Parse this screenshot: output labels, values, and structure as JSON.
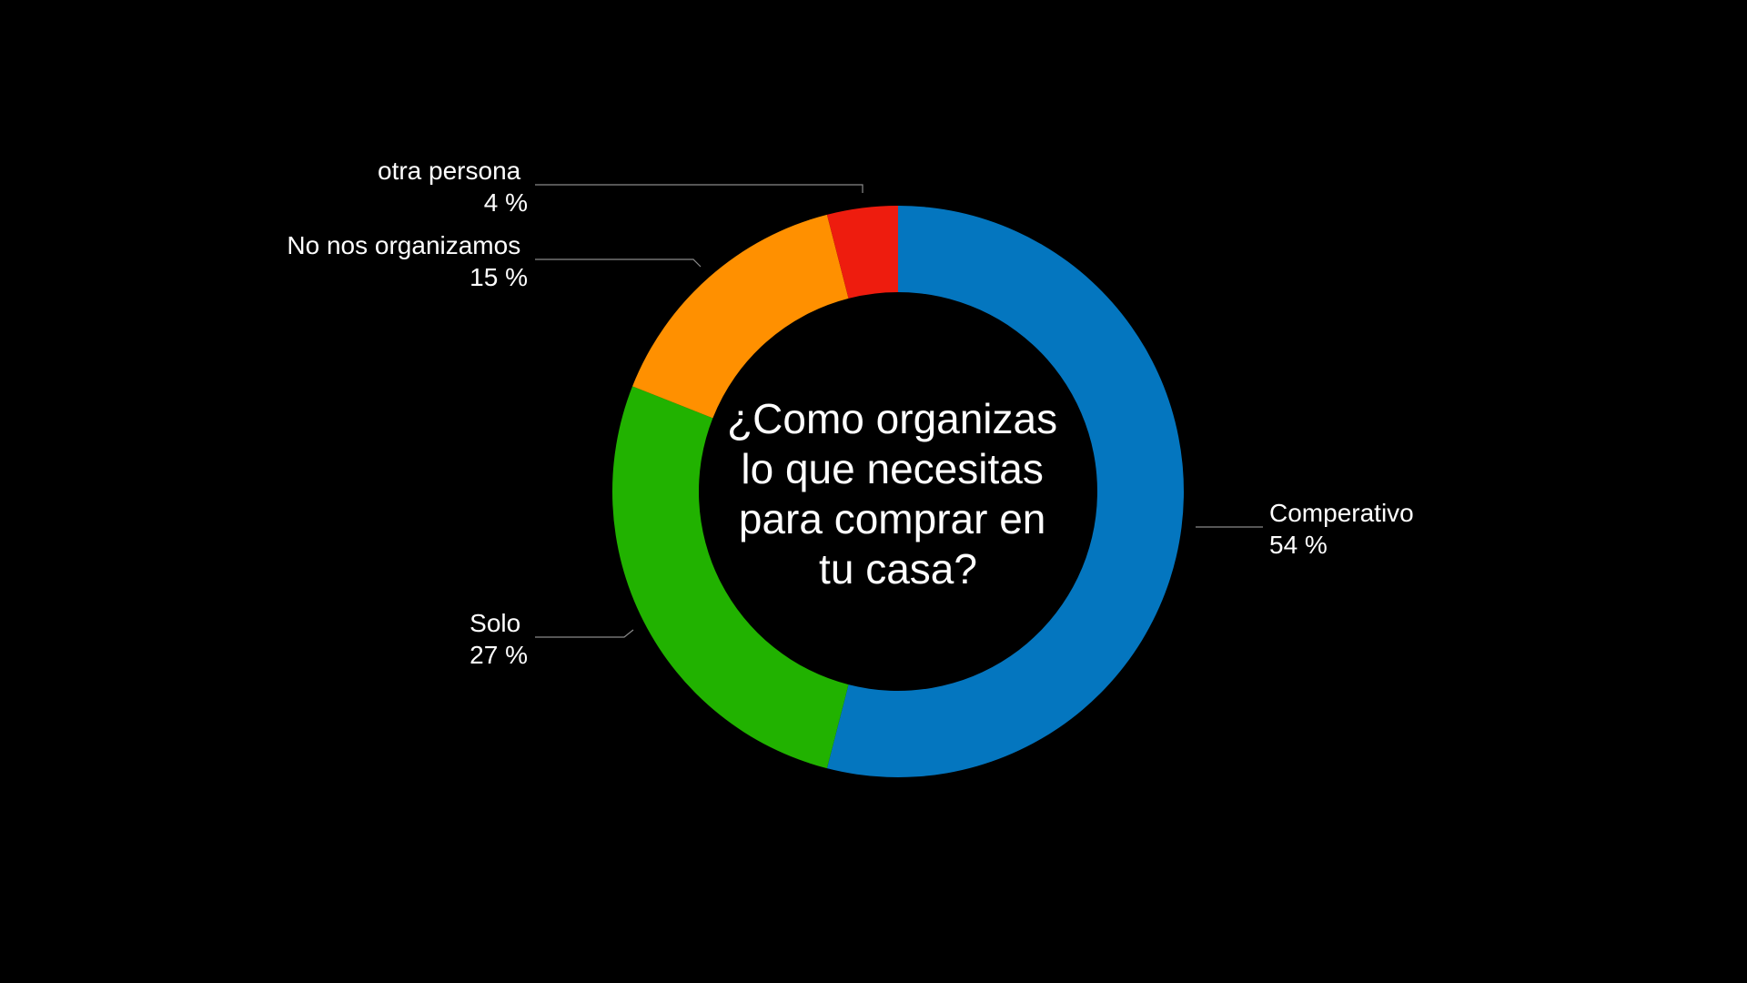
{
  "chart_data": {
    "type": "pie",
    "style": "donut",
    "title": "¿Como organizas lo que necesitas para comprar en tu casa?",
    "title_lines": [
      "¿Como organizas",
      "lo que necesitas",
      "para comprar en",
      "tu casa?"
    ],
    "slices": [
      {
        "label": "Comperativo",
        "value": 54,
        "value_text": "54 %",
        "color": "#0476bf"
      },
      {
        "label": "Solo",
        "value": 27,
        "value_text": "27 %",
        "color": "#21b200"
      },
      {
        "label": "No nos organizamos",
        "value": 15,
        "value_text": "15 %",
        "color": "#ff9000"
      },
      {
        "label": "otra persona",
        "value": 4,
        "value_text": "4 %",
        "color": "#ee1c0e"
      }
    ],
    "background": "#000000",
    "leader_line_color": "#8a8a8a"
  }
}
